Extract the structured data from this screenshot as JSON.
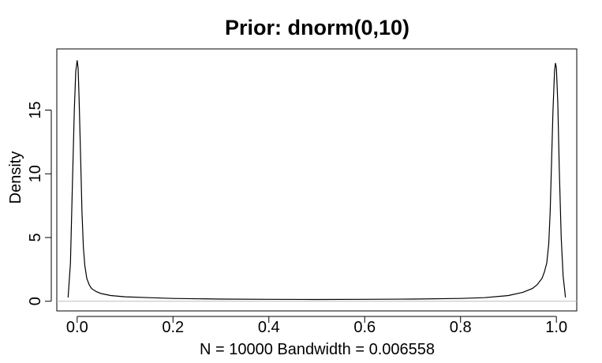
{
  "chart_data": {
    "type": "line",
    "title": "Prior: dnorm(0,10)",
    "xlabel": "N = 10000   Bandwidth = 0.006558",
    "ylabel": "Density",
    "xlim": [
      -0.0425,
      1.0425
    ],
    "ylim": [
      -0.76,
      19.8
    ],
    "x_ticks": [
      0.0,
      0.2,
      0.4,
      0.6,
      0.8,
      1.0
    ],
    "x_tick_labels": [
      "0.0",
      "0.2",
      "0.4",
      "0.6",
      "0.8",
      "1.0"
    ],
    "y_ticks": [
      0,
      5,
      10,
      15
    ],
    "y_tick_labels": [
      "0",
      "5",
      "10",
      "15"
    ],
    "baseline": 0,
    "grid": false,
    "colors": {
      "line": "#000000",
      "baseline": "#bebebe",
      "box": "#000000"
    },
    "series": [
      {
        "x": [
          -0.019,
          -0.014,
          -0.01,
          -0.006,
          -0.003,
          0.0,
          0.002,
          0.004,
          0.007,
          0.01,
          0.013,
          0.016,
          0.02,
          0.025,
          0.03,
          0.04,
          0.05,
          0.07,
          0.1,
          0.15,
          0.2,
          0.3,
          0.4,
          0.5,
          0.6,
          0.7,
          0.8,
          0.85,
          0.9,
          0.93,
          0.95,
          0.96,
          0.97,
          0.975,
          0.98,
          0.984,
          0.987,
          0.99,
          0.993,
          0.996,
          0.998,
          1.0,
          1.003,
          1.006,
          1.01,
          1.014,
          1.019
        ],
        "y": [
          0.3,
          3.0,
          9.0,
          15.0,
          18.0,
          18.9,
          18.3,
          16.0,
          11.5,
          7.0,
          4.2,
          2.8,
          1.8,
          1.3,
          1.0,
          0.75,
          0.6,
          0.45,
          0.35,
          0.28,
          0.22,
          0.17,
          0.15,
          0.14,
          0.15,
          0.17,
          0.22,
          0.28,
          0.45,
          0.7,
          1.0,
          1.3,
          1.8,
          2.3,
          3.0,
          4.5,
          7.0,
          11.0,
          15.0,
          18.0,
          18.7,
          18.3,
          15.5,
          10.5,
          5.0,
          2.0,
          0.3
        ]
      }
    ]
  }
}
